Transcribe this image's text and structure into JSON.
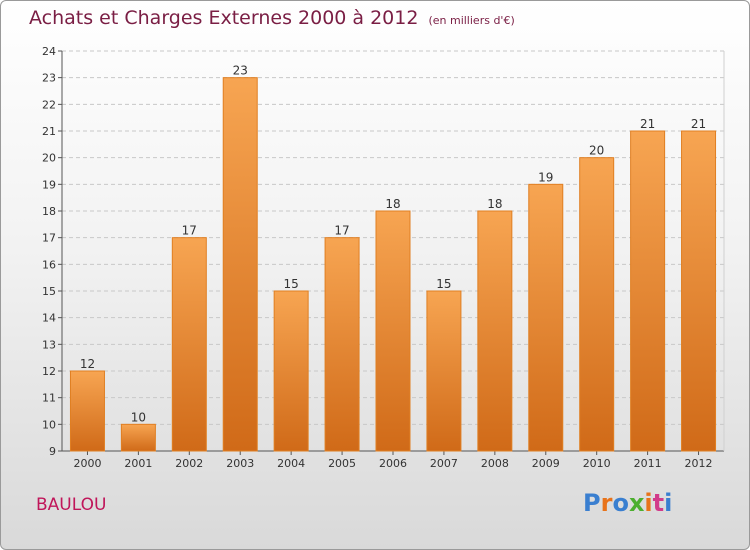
{
  "header": {
    "title": "Achats et Charges Externes 2000 à 2012",
    "unit": "(en milliers d'€)"
  },
  "footer": {
    "town": "BAULOU",
    "logo_text": "Proxiti",
    "logo_colors": [
      "#3a7fd0",
      "#e8731a",
      "#3a7fd0",
      "#4caf2f",
      "#e8731a",
      "#d23a8a",
      "#3a7fd0"
    ]
  },
  "colors": {
    "bar_top": "#f7a552",
    "bar_bottom": "#d06a18",
    "bar_edge": "#e07f22",
    "title": "#7a1e44",
    "town": "#c0165a"
  },
  "chart_data": {
    "type": "bar",
    "title": "Achats et Charges Externes 2000 à 2012",
    "subtitle": "(en milliers d'€)",
    "categories": [
      "2000",
      "2001",
      "2002",
      "2003",
      "2004",
      "2005",
      "2006",
      "2007",
      "2008",
      "2009",
      "2010",
      "2011",
      "2012"
    ],
    "values": [
      12,
      10,
      17,
      23,
      15,
      17,
      18,
      15,
      18,
      19,
      20,
      21,
      21
    ],
    "data_labels": [
      "12",
      "10",
      "17",
      "23",
      "15",
      "17",
      "18",
      "15",
      "18",
      "19",
      "20",
      "21",
      "21"
    ],
    "ylim": [
      9,
      24
    ],
    "yticks": [
      9,
      10,
      11,
      12,
      13,
      14,
      15,
      16,
      17,
      18,
      19,
      20,
      21,
      22,
      23,
      24
    ],
    "grid": true,
    "xlabel": "",
    "ylabel": ""
  }
}
